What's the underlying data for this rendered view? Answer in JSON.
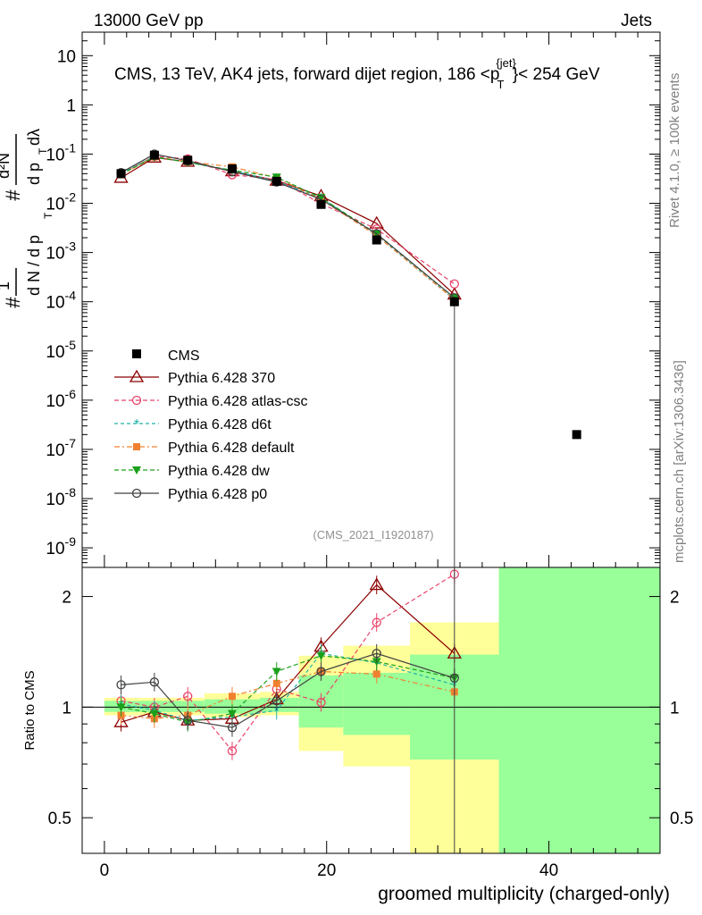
{
  "header": {
    "left": "13000 GeV pp",
    "right": "Jets",
    "title_prefix": "CMS, 13 TeV, AK4 jets, forward dijet region, 186 <p",
    "title_sup": "{jet}",
    "title_sub": "T",
    "title_suffix": "}< 254 GeV",
    "analysis_tag": "(CMS_2021_I1920187)"
  },
  "side_labels": {
    "rivet": "Rivet 4.1.0, ≥ 100k events",
    "mcplots": "mcplots.cern.ch [arXiv:1306.3436]"
  },
  "colors": {
    "cms": "#000000",
    "p370": "#8b0000",
    "atlas": "#e8446a",
    "d6t": "#20b2aa",
    "default": "#f08030",
    "dw": "#1aa01a",
    "p0": "#404040",
    "band_yellow": "#ffff99",
    "band_green": "#99ff99"
  },
  "chart_data": [
    {
      "type": "line",
      "panel": "main",
      "yscale": "log",
      "ylabel": "1/dN/dp_T  d²N/dp_T dλ",
      "ylim": [
        4e-10,
        30
      ],
      "xlim": [
        -2,
        50
      ],
      "ytick_labels": [
        "10^-9",
        "10^-8",
        "10^-7",
        "10^-6",
        "10^-5",
        "10^-4",
        "10^-3",
        "10^-2",
        "10^-1",
        "1",
        "10"
      ],
      "cms": {
        "name": "CMS",
        "x": [
          1.5,
          4.5,
          7.5,
          11.5,
          15.5,
          19.5,
          24.5,
          31.5,
          42.5
        ],
        "y": [
          0.04,
          0.095,
          0.075,
          0.05,
          0.028,
          0.0095,
          0.0018,
          0.0001,
          2e-07
        ]
      },
      "series": [
        {
          "name": "Pythia 6.428 370",
          "key": "p370",
          "x": [
            1.5,
            4.5,
            7.5,
            11.5,
            15.5,
            19.5,
            24.5,
            31.5
          ],
          "y": [
            0.033,
            0.085,
            0.07,
            0.045,
            0.029,
            0.014,
            0.0039,
            0.00014
          ]
        },
        {
          "name": "Pythia 6.428 atlas-csc",
          "key": "atlas",
          "x": [
            1.5,
            4.5,
            7.5,
            11.5,
            15.5,
            19.5,
            24.5,
            31.5
          ],
          "y": [
            0.04,
            0.09,
            0.08,
            0.038,
            0.031,
            0.0098,
            0.003,
            0.00023
          ]
        },
        {
          "name": "Pythia 6.428 d6t",
          "key": "d6t",
          "x": [
            1.5,
            4.5,
            7.5,
            11.5,
            15.5,
            19.5,
            24.5,
            31.5
          ],
          "y": [
            0.04,
            0.09,
            0.068,
            0.046,
            0.028,
            0.013,
            0.0023,
            0.00011
          ]
        },
        {
          "name": "Pythia 6.428 default",
          "key": "default",
          "x": [
            1.5,
            4.5,
            7.5,
            11.5,
            15.5,
            19.5,
            24.5,
            31.5
          ],
          "y": [
            0.038,
            0.088,
            0.07,
            0.055,
            0.033,
            0.012,
            0.0022,
            0.00011
          ]
        },
        {
          "name": "Pythia 6.428 dw",
          "key": "dw",
          "x": [
            1.5,
            4.5,
            7.5,
            11.5,
            15.5,
            19.5,
            24.5,
            31.5
          ],
          "y": [
            0.039,
            0.087,
            0.068,
            0.047,
            0.034,
            0.013,
            0.0024,
            0.00012
          ]
        },
        {
          "name": "Pythia 6.428 p0",
          "key": "p0",
          "x": [
            1.5,
            4.5,
            7.5,
            11.5,
            15.5,
            19.5,
            24.5,
            31.5
          ],
          "y": [
            0.042,
            0.1,
            0.073,
            0.044,
            0.027,
            0.012,
            0.0024,
            0.00012
          ]
        }
      ]
    },
    {
      "type": "line",
      "panel": "ratio",
      "yscale": "log",
      "ylabel": "Ratio to CMS",
      "ylim": [
        0.4,
        2.4
      ],
      "xlim": [
        -2,
        50
      ],
      "xlabel": "groomed multiplicity (charged-only)",
      "xtick_labels": [
        "0",
        "20",
        "40"
      ],
      "ytick_labels": [
        "0.5",
        "1",
        "2"
      ],
      "bands": [
        {
          "x0": 0,
          "x1": 3,
          "yellow": [
            0.95,
            1.06
          ],
          "green": [
            0.97,
            1.04
          ]
        },
        {
          "x0": 3,
          "x1": 6,
          "yellow": [
            0.95,
            1.06
          ],
          "green": [
            0.97,
            1.04
          ]
        },
        {
          "x0": 6,
          "x1": 9,
          "yellow": [
            0.95,
            1.06
          ],
          "green": [
            0.97,
            1.04
          ]
        },
        {
          "x0": 9,
          "x1": 14,
          "yellow": [
            0.94,
            1.09
          ],
          "green": [
            0.96,
            1.05
          ]
        },
        {
          "x0": 14,
          "x1": 17.5,
          "yellow": [
            0.95,
            1.1
          ],
          "green": [
            0.97,
            1.06
          ]
        },
        {
          "x0": 17.5,
          "x1": 21.5,
          "yellow": [
            0.76,
            1.38
          ],
          "green": [
            0.88,
            1.22
          ]
        },
        {
          "x0": 21.5,
          "x1": 27.5,
          "yellow": [
            0.69,
            1.47
          ],
          "green": [
            0.84,
            1.24
          ]
        },
        {
          "x0": 27.5,
          "x1": 35.5,
          "yellow": [
            0.4,
            1.7
          ],
          "green": [
            0.72,
            1.39
          ]
        },
        {
          "x0": 35.5,
          "x1": 50,
          "yellow": [
            0.4,
            2.4
          ],
          "green": [
            0.4,
            2.4
          ]
        }
      ],
      "series": [
        {
          "key": "p370",
          "x": [
            1.5,
            4.5,
            7.5,
            11.5,
            15.5,
            19.5,
            24.5,
            31.5
          ],
          "y": [
            0.91,
            0.97,
            0.92,
            0.93,
            1.05,
            1.46,
            2.15,
            1.4
          ]
        },
        {
          "key": "atlas",
          "x": [
            1.5,
            4.5,
            7.5,
            11.5,
            15.5,
            19.5,
            24.5,
            31.5
          ],
          "y": [
            1.04,
            1.0,
            1.07,
            0.76,
            1.12,
            1.03,
            1.7,
            2.3
          ]
        },
        {
          "key": "d6t",
          "x": [
            1.5,
            4.5,
            7.5,
            11.5,
            15.5,
            19.5,
            24.5,
            31.5
          ],
          "y": [
            1.02,
            0.98,
            0.92,
            0.94,
            0.98,
            1.4,
            1.32,
            1.15
          ]
        },
        {
          "key": "default",
          "x": [
            1.5,
            4.5,
            7.5,
            11.5,
            15.5,
            19.5,
            24.5,
            31.5
          ],
          "y": [
            0.95,
            0.93,
            0.95,
            1.07,
            1.16,
            1.25,
            1.23,
            1.1
          ]
        },
        {
          "key": "dw",
          "x": [
            1.5,
            4.5,
            7.5,
            11.5,
            15.5,
            19.5,
            24.5,
            31.5
          ],
          "y": [
            1.0,
            0.96,
            0.91,
            0.96,
            1.25,
            1.38,
            1.33,
            1.2
          ]
        },
        {
          "key": "p0",
          "x": [
            1.5,
            4.5,
            7.5,
            11.5,
            15.5,
            19.5,
            24.5,
            31.5
          ],
          "y": [
            1.15,
            1.17,
            0.92,
            0.88,
            1.04,
            1.25,
            1.4,
            1.2
          ]
        }
      ]
    }
  ]
}
